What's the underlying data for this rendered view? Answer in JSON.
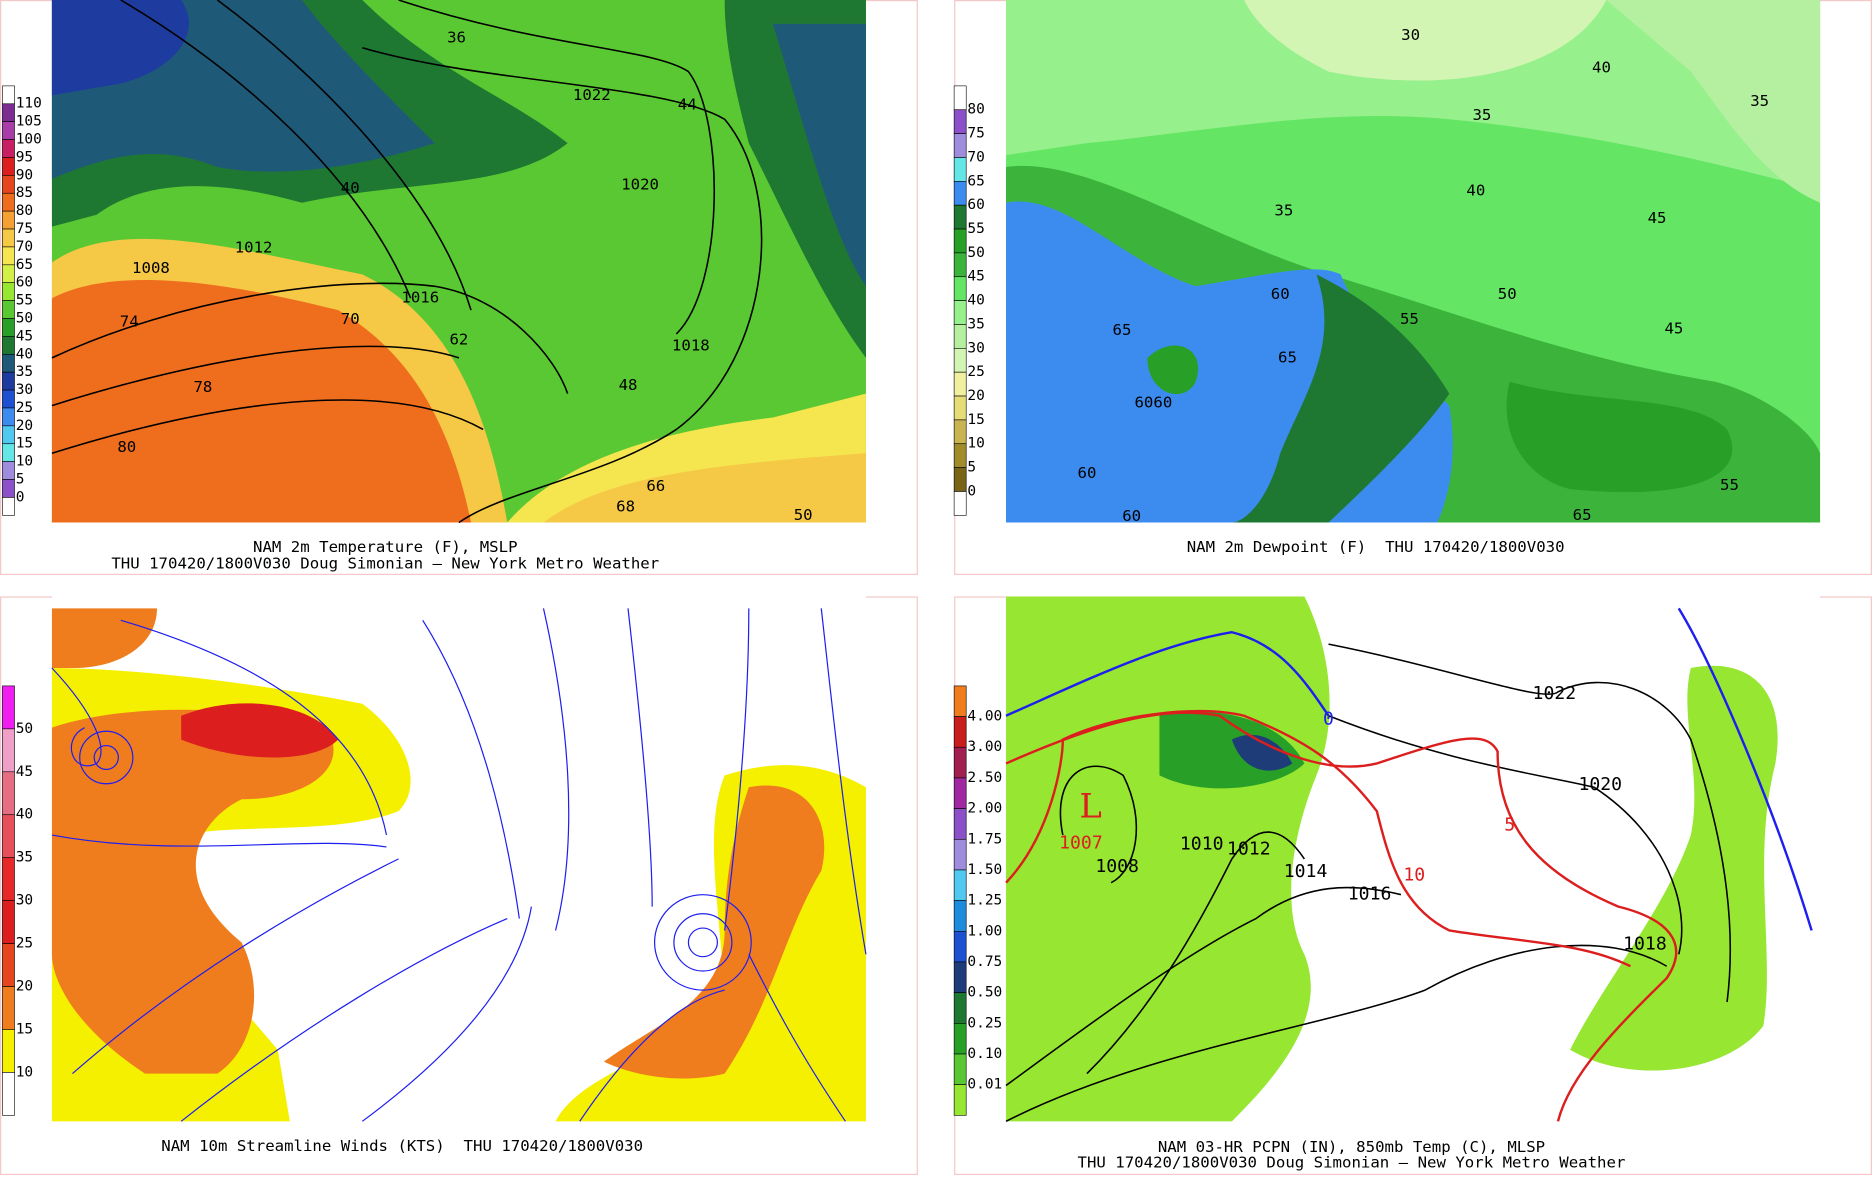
{
  "panels": [
    {
      "caption": [
        "NAM 2m Temperature (F), MSLP",
        "THU 170420/1800V030 Doug Simonian — New York Metro Weather"
      ],
      "colorbar": {
        "labels": [
          "110",
          "105",
          "100",
          "95",
          "90",
          "85",
          "80",
          "75",
          "70",
          "65",
          "60",
          "55",
          "50",
          "45",
          "40",
          "35",
          "30",
          "25",
          "20",
          "15",
          "10",
          "5",
          "0"
        ],
        "colors": [
          "#ffffff",
          "#7d2d91",
          "#a83ca8",
          "#c81e64",
          "#dc1e1e",
          "#e6461e",
          "#ef6e1e",
          "#f5a032",
          "#f5c846",
          "#f5e650",
          "#d2f046",
          "#96e632",
          "#5ac832",
          "#28a028",
          "#1e7832",
          "#1e5a78",
          "#1e3ca0",
          "#1e50d2",
          "#3c8cf0",
          "#50c8f0",
          "#64e6e6",
          "#a08cdc",
          "#8c50c8",
          "#ffffff"
        ]
      },
      "map_labels": [
        "1008",
        "1012",
        "1016",
        "1020",
        "1022",
        "1018",
        "78",
        "80",
        "70",
        "62",
        "48",
        "66",
        "68",
        "36",
        "40",
        "50",
        "44",
        "74"
      ]
    },
    {
      "caption": [
        "NAM 2m Dewpoint (F)  THU 170420/1800V030"
      ],
      "colorbar": {
        "labels": [
          "80",
          "75",
          "70",
          "65",
          "60",
          "55",
          "50",
          "45",
          "40",
          "35",
          "30",
          "25",
          "20",
          "15",
          "10",
          "5",
          "0"
        ],
        "colors": [
          "#ffffff",
          "#8c50c8",
          "#a08cdc",
          "#64e6e6",
          "#3c8cf0",
          "#1e7832",
          "#28a028",
          "#3cb43c",
          "#64e664",
          "#96f08c",
          "#b4f0a0",
          "#d2f5b4",
          "#f0f0a0",
          "#e6dc78",
          "#c8b450",
          "#a08c28",
          "#786414",
          "#ffffff"
        ]
      },
      "map_labels": [
        "30",
        "35",
        "35",
        "40",
        "45",
        "45",
        "50",
        "55",
        "60",
        "65",
        "65",
        "60",
        "60",
        "6060",
        "65",
        "55",
        "35",
        "40"
      ]
    },
    {
      "caption": [
        "NAM 10m Streamline Winds (KTS)  THU 170420/1800V030"
      ],
      "colorbar": {
        "labels": [
          "50",
          "45",
          "40",
          "35",
          "30",
          "25",
          "20",
          "15",
          "10"
        ],
        "colors": [
          "#f01ef0",
          "#f0a0c8",
          "#e66e82",
          "#e6505a",
          "#e62828",
          "#dc1e1e",
          "#e6461e",
          "#ef7d1e",
          "#f5f000",
          "#ffffff"
        ]
      },
      "map_labels": []
    },
    {
      "caption": [
        "NAM 03-HR PCPN (IN), 850mb Temp (C), MLSP",
        "THU 170420/1800V030 Doug Simonian — New York Metro Weather"
      ],
      "colorbar": {
        "labels": [
          "4.00",
          "3.00",
          "2.50",
          "2.00",
          "1.75",
          "1.50",
          "1.25",
          "1.00",
          "0.75",
          "0.50",
          "0.25",
          "0.10",
          "0.01"
        ],
        "colors": [
          "#ef7d1e",
          "#c81e1e",
          "#a01e50",
          "#a028a0",
          "#8c50c8",
          "#a08cdc",
          "#50c8f0",
          "#1e8cdc",
          "#1e50d2",
          "#1e3c78",
          "#1e7832",
          "#28a028",
          "#5ac832",
          "#96e632"
        ]
      },
      "map_labels": [
        "1022",
        "1020",
        "1018",
        "1016",
        "1014",
        "1012",
        "1010",
        "1008",
        "10",
        "5",
        "0",
        "L",
        "1007"
      ]
    }
  ]
}
